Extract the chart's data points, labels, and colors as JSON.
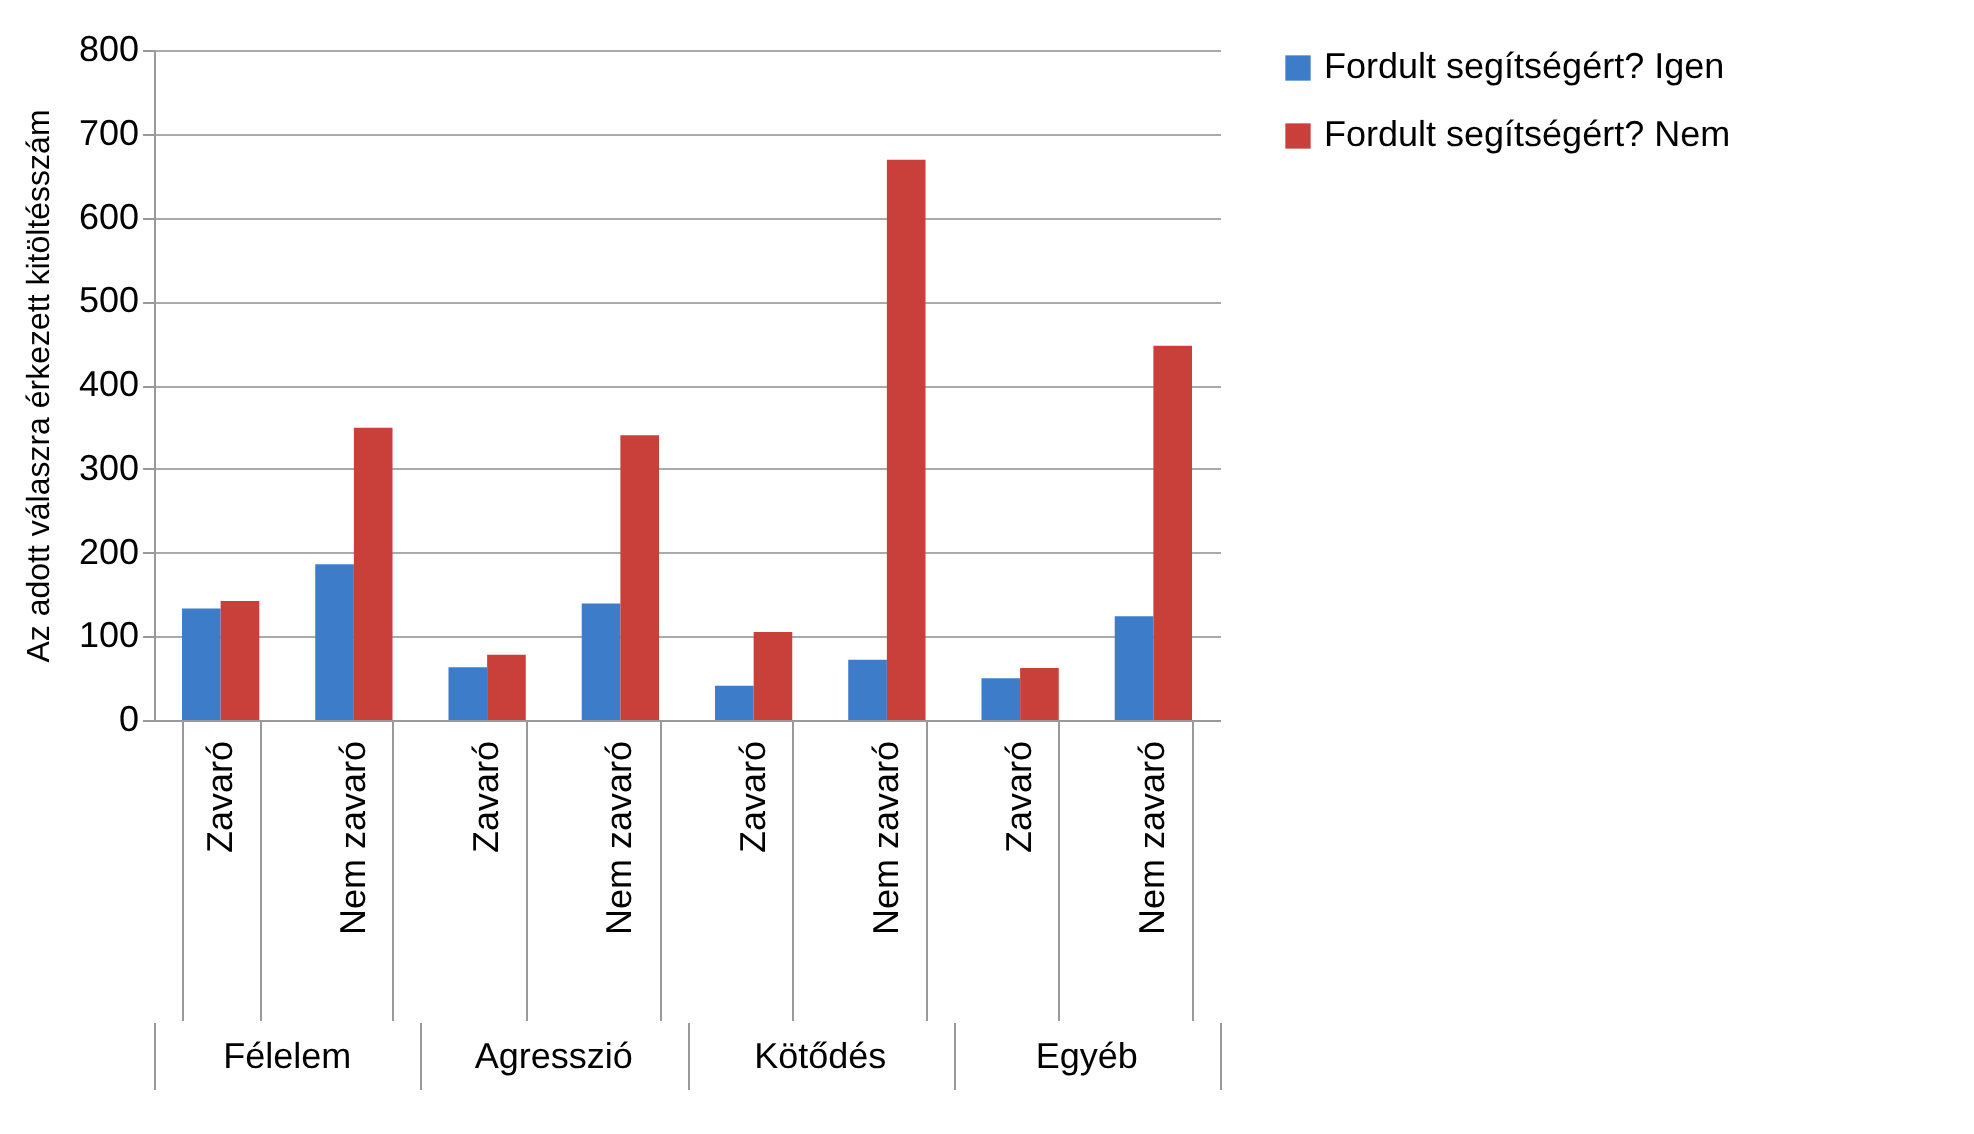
{
  "chart_data": {
    "type": "bar",
    "ylabel": "Az adott válaszra érkezett kitöltésszám",
    "categories": [
      "Zavaró",
      "Nem zavaró",
      "Zavaró",
      "Nem zavaró",
      "Zavaró",
      "Nem zavaró",
      "Zavaró",
      "Nem zavaró"
    ],
    "series": [
      {
        "name": "Fordult segítségért? Igen",
        "color": "#3d7cc9",
        "values": [
          133,
          186,
          63,
          139,
          41,
          72,
          50,
          124
        ]
      },
      {
        "name": "Fordult segítségért? Nem",
        "color": "#c9403b",
        "values": [
          142,
          349,
          78,
          340,
          105,
          669,
          62,
          447
        ]
      }
    ],
    "annotations": [
      "Félelem",
      "Agresszió",
      "Kötődés",
      "Egyéb"
    ],
    "ylim": [
      0,
      800
    ],
    "yticks": [
      0,
      100,
      200,
      300,
      400,
      500,
      600,
      700,
      800
    ],
    "grid": "y",
    "legend": "right"
  }
}
